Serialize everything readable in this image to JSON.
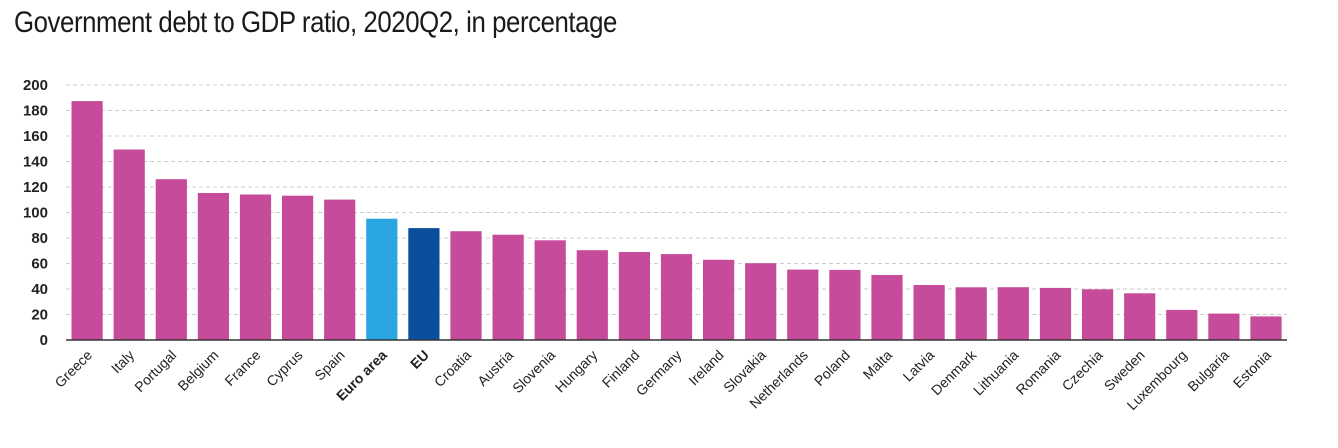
{
  "chart_data": {
    "type": "bar",
    "title": "Government debt to GDP ratio, 2020Q2, in percentage",
    "xlabel": "",
    "ylabel": "",
    "ylim": [
      0,
      200
    ],
    "yticks": [
      0,
      20,
      40,
      60,
      80,
      100,
      120,
      140,
      160,
      180,
      200
    ],
    "grid": true,
    "categories": [
      "Greece",
      "Italy",
      "Portugal",
      "Belgium",
      "France",
      "Cyprus",
      "Spain",
      "Euro area",
      "EU",
      "Croatia",
      "Austria",
      "Slovenia",
      "Hungary",
      "Finland",
      "Germany",
      "Ireland",
      "Slovakia",
      "Netherlands",
      "Poland",
      "Malta",
      "Latvia",
      "Denmark",
      "Lithuania",
      "Romania",
      "Czechia",
      "Sweden",
      "Luxembourg",
      "Bulgaria",
      "Estonia"
    ],
    "values": [
      187.4,
      149.4,
      126.1,
      115.3,
      114.1,
      113.2,
      110.1,
      95.1,
      87.8,
      85.3,
      82.6,
      78.2,
      70.4,
      69.0,
      67.4,
      62.9,
      60.2,
      55.2,
      55.0,
      51.0,
      43.1,
      41.3,
      41.4,
      40.9,
      39.8,
      36.6,
      23.6,
      20.7,
      18.5
    ],
    "highlight": [
      "Euro area",
      "EU"
    ],
    "colors": {
      "default": "#c64b9a",
      "Euro area": "#2aa7e0",
      "EU": "#0a4f9c",
      "grid": "#cccccc",
      "axis": "#333333"
    }
  }
}
